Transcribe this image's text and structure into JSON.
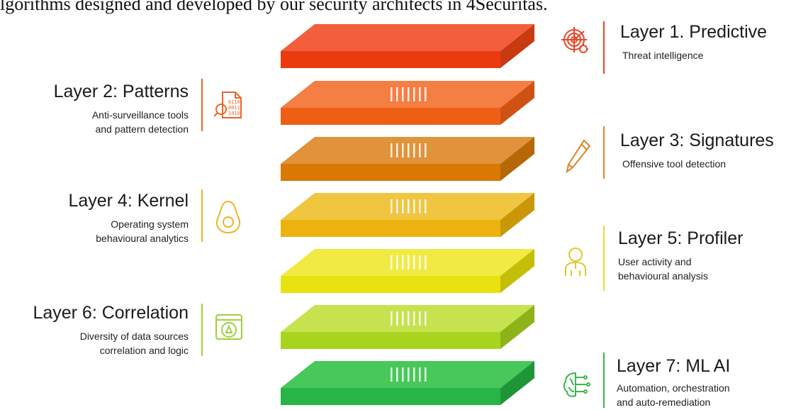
{
  "caption": "lgorithms designed and developed by our security architects in 4Securitas.",
  "layers": [
    {
      "id": 1,
      "title": "Layer 1. Predictive",
      "desc": [
        "Threat intelligence"
      ],
      "side": "right",
      "icon": "radar-target-icon",
      "color": "#e8462a",
      "top": "#f35f3d",
      "front": "#ec3a0f",
      "side_face": "#c73a12"
    },
    {
      "id": 2,
      "title": "Layer 2: Patterns",
      "desc": [
        "Anti-surveillance tools",
        "and pattern detection"
      ],
      "side": "left",
      "icon": "binary-document-search-icon",
      "color": "#ee6524",
      "top": "#f47e43",
      "front": "#ee5f15",
      "side_face": "#cf5212"
    },
    {
      "id": 3,
      "title": "Layer 3: Signatures",
      "desc": [
        "Offensive tool detection"
      ],
      "side": "right",
      "icon": "pen-icon",
      "color": "#d9852a",
      "top": "#e0933b",
      "front": "#da7805",
      "side_face": "#b66806"
    },
    {
      "id": 4,
      "title": "Layer 4: Kernel",
      "desc": [
        "Operating system",
        "behavioural analytics"
      ],
      "side": "left",
      "icon": "avocado-kernel-icon",
      "color": "#ebb527",
      "top": "#f0c540",
      "front": "#ecb30f",
      "side_face": "#c99708"
    },
    {
      "id": 5,
      "title": "Layer 5: Profiler",
      "desc": [
        "User activity and",
        "behavioural analysis"
      ],
      "side": "right",
      "icon": "user-profile-icon",
      "color": "#ecd92f",
      "top": "#f1ea45",
      "front": "#e8e20f",
      "side_face": "#c4be07"
    },
    {
      "id": 6,
      "title": "Layer 6: Correlation",
      "desc": [
        "Diversity of data sources",
        "correlation and logic"
      ],
      "side": "left",
      "icon": "window-gear-alert-icon",
      "color": "#9ed13a",
      "top": "#c6e24f",
      "front": "#a8d420",
      "side_face": "#8db318"
    },
    {
      "id": 7,
      "title": "Layer 7: ML AI",
      "desc": [
        "Automation, orchestration",
        "and auto-remediation"
      ],
      "side": "right",
      "icon": "brain-circuit-icon",
      "color": "#3cb64a",
      "top": "#48c75a",
      "front": "#28b447",
      "side_face": "#1e9539"
    }
  ]
}
